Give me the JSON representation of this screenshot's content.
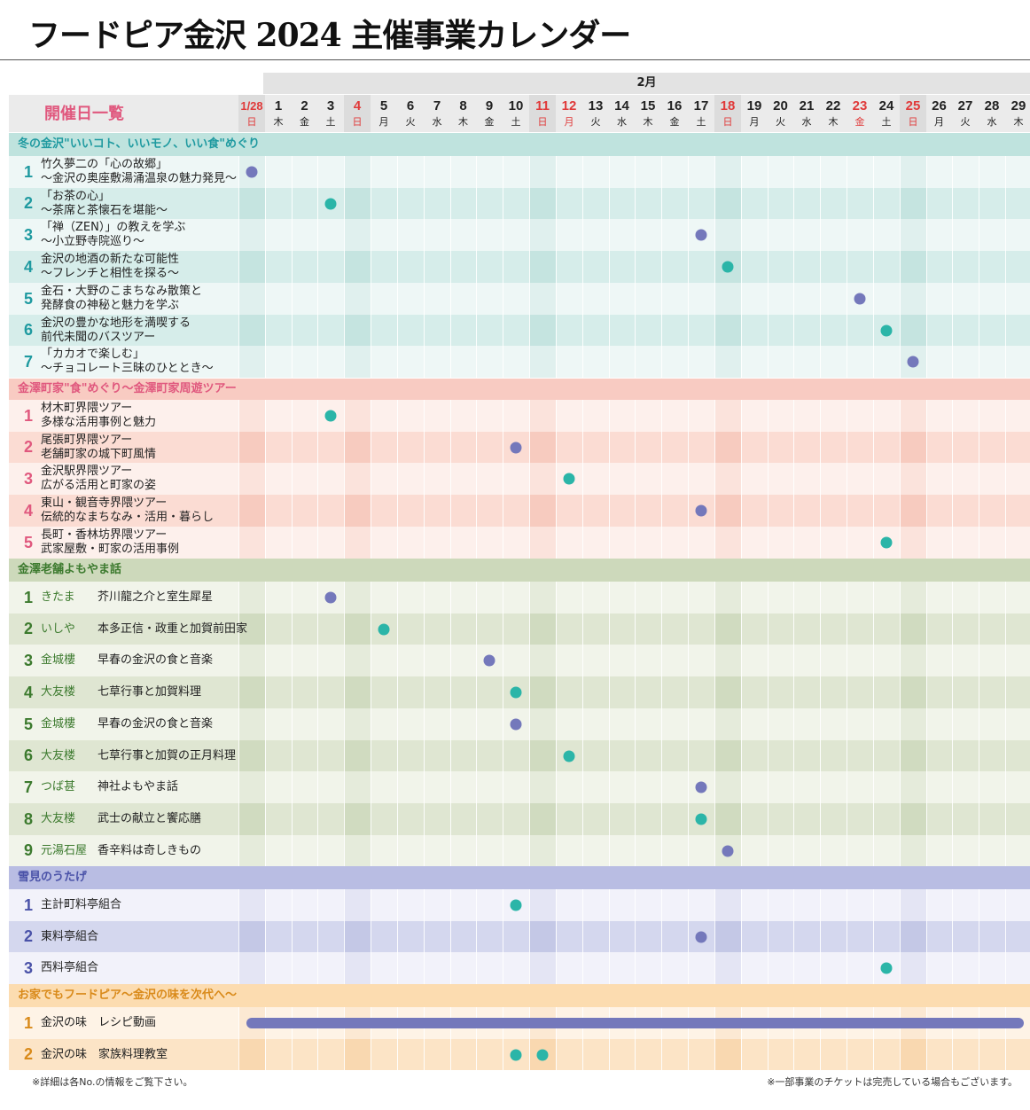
{
  "title": "フードピア金沢 2024 主催事業カレンダー",
  "month_label": "2月",
  "header_label": "開催日一覧",
  "days": [
    {
      "d": "1/28",
      "w": "日",
      "red": true
    },
    {
      "d": "1",
      "w": "木"
    },
    {
      "d": "2",
      "w": "金"
    },
    {
      "d": "3",
      "w": "土"
    },
    {
      "d": "4",
      "w": "日",
      "red": true
    },
    {
      "d": "5",
      "w": "月"
    },
    {
      "d": "6",
      "w": "火"
    },
    {
      "d": "7",
      "w": "水"
    },
    {
      "d": "8",
      "w": "木"
    },
    {
      "d": "9",
      "w": "金"
    },
    {
      "d": "10",
      "w": "土"
    },
    {
      "d": "11",
      "w": "日",
      "red": true
    },
    {
      "d": "12",
      "w": "月",
      "red": true
    },
    {
      "d": "13",
      "w": "火"
    },
    {
      "d": "14",
      "w": "水"
    },
    {
      "d": "15",
      "w": "木"
    },
    {
      "d": "16",
      "w": "金"
    },
    {
      "d": "17",
      "w": "土"
    },
    {
      "d": "18",
      "w": "日",
      "red": true
    },
    {
      "d": "19",
      "w": "月"
    },
    {
      "d": "20",
      "w": "火"
    },
    {
      "d": "21",
      "w": "水"
    },
    {
      "d": "22",
      "w": "木"
    },
    {
      "d": "23",
      "w": "金",
      "red": true
    },
    {
      "d": "24",
      "w": "土"
    },
    {
      "d": "25",
      "w": "日",
      "red": true
    },
    {
      "d": "26",
      "w": "月"
    },
    {
      "d": "27",
      "w": "火"
    },
    {
      "d": "28",
      "w": "水"
    },
    {
      "d": "29",
      "w": "木"
    }
  ],
  "dot_colors": {
    "purple": "#7478bb",
    "teal": "#2bb5a8"
  },
  "sections": [
    {
      "name": "冬の金沢\"いいコト、いいモノ、いい食\"めぐり",
      "colors": {
        "head": "#bfe3de",
        "a": "#eef7f6",
        "b": "#d6edea",
        "a_wk": "#e0f0ee",
        "b_wk": "#c5e4e0",
        "num": "#1f9aa0"
      },
      "two_line": true,
      "items": [
        {
          "no": "1",
          "lines": [
            "竹久夢二の「心の故郷」",
            "～金沢の奥座敷湯涌温泉の魅力発見～"
          ],
          "dots": [
            {
              "day": 0,
              "c": "purple"
            }
          ]
        },
        {
          "no": "2",
          "lines": [
            "「お茶の心」",
            "～茶席と茶懐石を堪能～"
          ],
          "dots": [
            {
              "day": 3,
              "c": "teal"
            }
          ]
        },
        {
          "no": "3",
          "lines": [
            "「禅（ZEN）」の教えを学ぶ",
            "～小立野寺院巡り～"
          ],
          "dots": [
            {
              "day": 17,
              "c": "purple"
            }
          ]
        },
        {
          "no": "4",
          "lines": [
            "金沢の地酒の新たな可能性",
            "～フレンチと相性を探る～"
          ],
          "dots": [
            {
              "day": 18,
              "c": "teal"
            }
          ]
        },
        {
          "no": "5",
          "lines": [
            "金石・大野のこまちなみ散策と",
            "発酵食の神秘と魅力を学ぶ"
          ],
          "dots": [
            {
              "day": 23,
              "c": "purple"
            }
          ]
        },
        {
          "no": "6",
          "lines": [
            "金沢の豊かな地形を満喫する",
            "前代未聞のバスツアー"
          ],
          "dots": [
            {
              "day": 24,
              "c": "teal"
            }
          ]
        },
        {
          "no": "7",
          "lines": [
            "「カカオで楽しむ」",
            "～チョコレート三昧のひととき～"
          ],
          "dots": [
            {
              "day": 25,
              "c": "purple"
            }
          ]
        }
      ]
    },
    {
      "name": "金澤町家\"食\"めぐり～金澤町家周遊ツアー",
      "colors": {
        "head": "#f8cbc2",
        "a": "#fdf0ec",
        "b": "#fbdcd3",
        "a_wk": "#fbe3dc",
        "b_wk": "#f7cbbf",
        "num": "#e0587e"
      },
      "two_line": true,
      "items": [
        {
          "no": "1",
          "lines": [
            "材木町界隈ツアー",
            "多様な活用事例と魅力"
          ],
          "dots": [
            {
              "day": 3,
              "c": "teal"
            }
          ]
        },
        {
          "no": "2",
          "lines": [
            "尾張町界隈ツアー",
            "老舗町家の城下町風情"
          ],
          "dots": [
            {
              "day": 10,
              "c": "purple"
            }
          ]
        },
        {
          "no": "3",
          "lines": [
            "金沢駅界隈ツアー",
            "広がる活用と町家の姿"
          ],
          "dots": [
            {
              "day": 12,
              "c": "teal"
            }
          ]
        },
        {
          "no": "4",
          "lines": [
            "東山・観音寺界隈ツアー",
            "伝統的なまちなみ・活用・暮らし"
          ],
          "dots": [
            {
              "day": 17,
              "c": "purple"
            }
          ]
        },
        {
          "no": "5",
          "lines": [
            "長町・香林坊界隈ツアー",
            "武家屋敷・町家の活用事例"
          ],
          "dots": [
            {
              "day": 24,
              "c": "teal"
            }
          ]
        }
      ]
    },
    {
      "name": "金澤老舗よもやま話",
      "colors": {
        "head": "#cdd9bb",
        "a": "#f1f4ea",
        "b": "#dfe6d2",
        "a_wk": "#e5ebdb",
        "b_wk": "#d0dbc0",
        "num": "#3c7a2e",
        "venue": "#3c7a2e"
      },
      "two_line": false,
      "items": [
        {
          "no": "1",
          "venue": "きたま",
          "sub": "芥川龍之介と室生犀星",
          "dots": [
            {
              "day": 3,
              "c": "purple"
            }
          ]
        },
        {
          "no": "2",
          "venue": "いしや",
          "sub": "本多正信・政重と加賀前田家",
          "dots": [
            {
              "day": 5,
              "c": "teal"
            }
          ]
        },
        {
          "no": "3",
          "venue": "金城樓",
          "sub": "早春の金沢の食と音楽",
          "dots": [
            {
              "day": 9,
              "c": "purple"
            }
          ]
        },
        {
          "no": "4",
          "venue": "大友楼",
          "sub": "七草行事と加賀料理",
          "dots": [
            {
              "day": 10,
              "c": "teal"
            }
          ]
        },
        {
          "no": "5",
          "venue": "金城樓",
          "sub": "早春の金沢の食と音楽",
          "dots": [
            {
              "day": 10,
              "c": "purple"
            }
          ]
        },
        {
          "no": "6",
          "venue": "大友楼",
          "sub": "七草行事と加賀の正月料理",
          "dots": [
            {
              "day": 12,
              "c": "teal"
            }
          ]
        },
        {
          "no": "7",
          "venue": "つば甚",
          "sub": "神社よもやま話",
          "dots": [
            {
              "day": 17,
              "c": "purple"
            }
          ]
        },
        {
          "no": "8",
          "venue": "大友楼",
          "sub": "武士の献立と饗応膳",
          "dots": [
            {
              "day": 17,
              "c": "teal"
            }
          ]
        },
        {
          "no": "9",
          "venue": "元湯石屋",
          "sub": "香辛料は奇しきもの",
          "dots": [
            {
              "day": 18,
              "c": "purple"
            }
          ]
        }
      ]
    },
    {
      "name": "雪見のうたげ",
      "colors": {
        "head": "#b9bde3",
        "a": "#f2f2fa",
        "b": "#d4d7ee",
        "a_wk": "#e4e5f4",
        "b_wk": "#c4c8e6",
        "num": "#4a52a8"
      },
      "two_line": false,
      "items": [
        {
          "no": "1",
          "venue": "主計町料亭組合",
          "dots": [
            {
              "day": 10,
              "c": "teal"
            }
          ]
        },
        {
          "no": "2",
          "venue": "東料亭組合",
          "dots": [
            {
              "day": 17,
              "c": "purple"
            }
          ]
        },
        {
          "no": "3",
          "venue": "西料亭組合",
          "dots": [
            {
              "day": 24,
              "c": "teal"
            }
          ]
        }
      ]
    },
    {
      "name": "お家でもフードピア～金沢の味を次代へ～",
      "colors": {
        "head": "#fcdcb0",
        "a": "#fef3e6",
        "b": "#fce4c6",
        "a_wk": "#fce9d3",
        "b_wk": "#f9d8b0",
        "num": "#d98a1a"
      },
      "two_line": false,
      "items": [
        {
          "no": "1",
          "venue": "金沢の味　レシピ動画",
          "bar": {
            "from": 0,
            "to": 29
          },
          "dots": []
        },
        {
          "no": "2",
          "venue": "金沢の味　家族料理教室",
          "dots": [
            {
              "day": 10,
              "c": "teal"
            },
            {
              "day": 11,
              "c": "teal"
            }
          ]
        }
      ]
    }
  ],
  "footnotes": {
    "left": "※詳細は各No.の情報をご覧下さい。",
    "right": "※一部事業のチケットは完売している場合もございます。"
  }
}
